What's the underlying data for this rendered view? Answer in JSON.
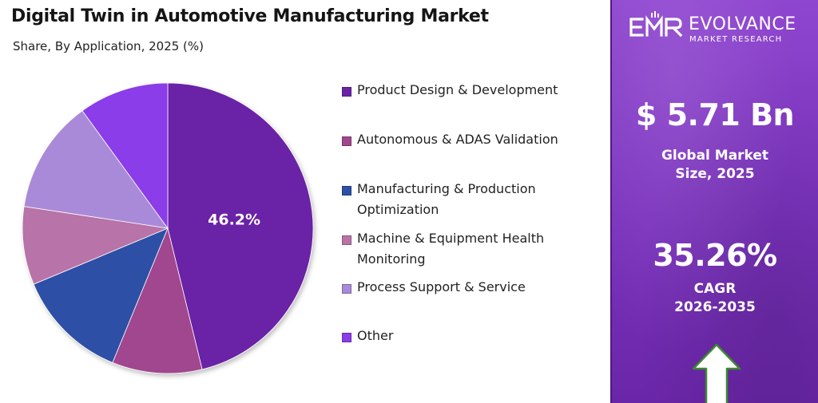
{
  "header": {
    "title": "Digital Twin in Automotive Manufacturing Market",
    "subtitle": "Share, By Application, 2025 (%)"
  },
  "chart_data": {
    "type": "pie",
    "title": "Digital Twin in Automotive Manufacturing Market",
    "subtitle": "Share, By Application, 2025 (%)",
    "legend_position": "right",
    "slices": [
      {
        "label": "Product Design & Development",
        "value": 46.2,
        "value_label": "46.2%",
        "color": "#6a23a6"
      },
      {
        "label": "Autonomous & ADAS Validation",
        "value": 10.0,
        "color": "#a0478f"
      },
      {
        "label": "Manufacturing & Production Optimization",
        "value": 12.5,
        "color": "#2e4fa6"
      },
      {
        "label": "Machine & Equipment Health Monitoring",
        "value": 8.7,
        "color": "#b873a8"
      },
      {
        "label": "Process Support & Service",
        "value": 12.6,
        "color": "#a98ad8"
      },
      {
        "label": "Other",
        "value": 10.0,
        "color": "#8a3de8"
      }
    ]
  },
  "sidebar": {
    "brand_name": "EVOLVANCE",
    "brand_tagline": "MARKET RESEARCH",
    "market_size_value": "$ 5.71 Bn",
    "market_size_label": "Global Market\nSize, 2025",
    "cagr_value": "35.26%",
    "cagr_label": "CAGR\n2026-2035",
    "arrow_icon": "up-arrow-icon",
    "panel_color": "#7d35c2"
  }
}
